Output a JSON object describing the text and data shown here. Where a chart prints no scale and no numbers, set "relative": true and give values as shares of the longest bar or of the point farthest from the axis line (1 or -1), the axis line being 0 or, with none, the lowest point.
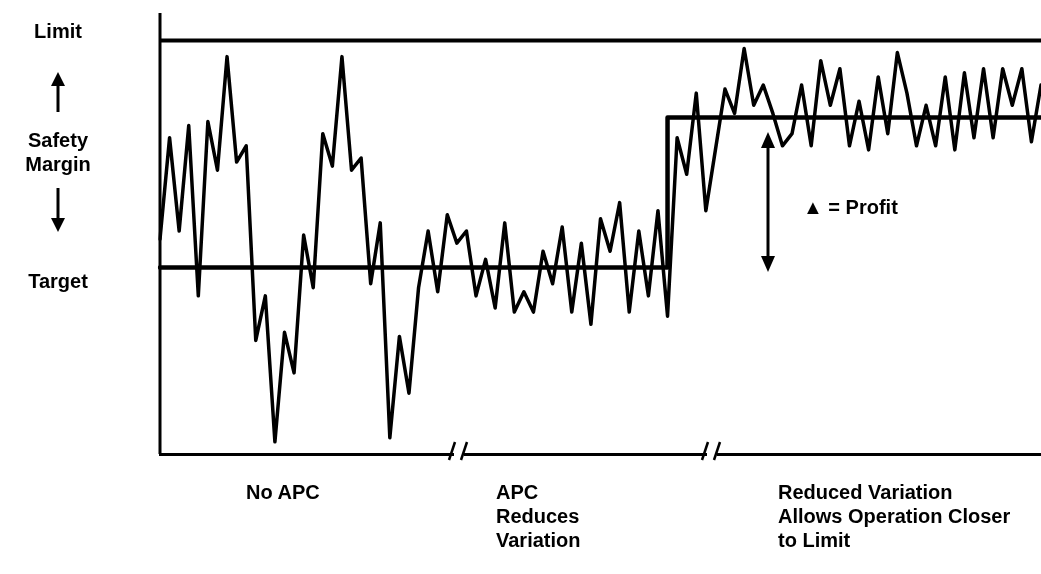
{
  "chart_data": {
    "type": "line",
    "relative": true,
    "categories": [
      null,
      null,
      null,
      null,
      null,
      null,
      null,
      null,
      null,
      null,
      null,
      null,
      null,
      null,
      null,
      null,
      null,
      null,
      null,
      null,
      null,
      null,
      null,
      null,
      null,
      null,
      null,
      null,
      null,
      null,
      null,
      null,
      null,
      null,
      null,
      null,
      null,
      null,
      null,
      null,
      null,
      null,
      null,
      null,
      null,
      null,
      null,
      null,
      null,
      null,
      null,
      null,
      null,
      null,
      null,
      null,
      null,
      null,
      null,
      null,
      null,
      null,
      null,
      null,
      null,
      null,
      null,
      null,
      null,
      null,
      null,
      null,
      null,
      null,
      null,
      null,
      null,
      null,
      null,
      null,
      null,
      null,
      null,
      null,
      null,
      null,
      null,
      null,
      null,
      null,
      null,
      null,
      null
    ],
    "series": [
      {
        "color": "#000000",
        "values": [
          0.53,
          0.78,
          0.55,
          0.81,
          0.39,
          0.82,
          0.7,
          0.98,
          0.72,
          0.76,
          0.28,
          0.39,
          0.03,
          0.3,
          0.2,
          0.54,
          0.41,
          0.79,
          0.71,
          0.98,
          0.7,
          0.73,
          0.42,
          0.57,
          0.04,
          0.29,
          0.15,
          0.41,
          0.55,
          0.4,
          0.59,
          0.52,
          0.55,
          0.39,
          0.48,
          0.36,
          0.57,
          0.35,
          0.4,
          0.35,
          0.5,
          0.42,
          0.56,
          0.35,
          0.52,
          0.32,
          0.58,
          0.5,
          0.62,
          0.35,
          0.55,
          0.39,
          0.6,
          0.34,
          0.78,
          0.69,
          0.89,
          0.6,
          0.75,
          0.9,
          0.84,
          1,
          0.86,
          0.91,
          0.84,
          0.76,
          0.79,
          0.91,
          0.76,
          0.97,
          0.86,
          0.95,
          0.76,
          0.87,
          0.75,
          0.93,
          0.79,
          0.99,
          0.89,
          0.76,
          0.86,
          0.76,
          0.93,
          0.75,
          0.94,
          0.78,
          0.95,
          0.78,
          0.95,
          0.86,
          0.95,
          0.77,
          0.91
        ]
      },
      {
        "type": "step",
        "color": "#000000",
        "values": [
          0.46,
          0.46,
          0.46,
          0.46,
          0.46,
          0.46,
          0.46,
          0.46,
          0.46,
          0.46,
          0.46,
          0.46,
          0.46,
          0.46,
          0.46,
          0.46,
          0.46,
          0.46,
          0.46,
          0.46,
          0.46,
          0.46,
          0.46,
          0.46,
          0.46,
          0.46,
          0.46,
          0.46,
          0.46,
          0.46,
          0.46,
          0.46,
          0.46,
          0.46,
          0.46,
          0.46,
          0.46,
          0.46,
          0.46,
          0.46,
          0.46,
          0.46,
          0.46,
          0.46,
          0.46,
          0.46,
          0.46,
          0.46,
          0.46,
          0.46,
          0.46,
          0.46,
          0.46,
          0.83,
          0.83,
          0.83,
          0.83,
          0.83,
          0.83,
          0.83,
          0.83,
          0.83,
          0.83,
          0.83,
          0.83,
          0.83,
          0.83,
          0.83,
          0.83,
          0.83,
          0.83,
          0.83,
          0.83,
          0.83,
          0.83,
          0.83,
          0.83,
          0.83,
          0.83,
          0.83,
          0.83,
          0.83,
          0.83,
          0.83,
          0.83,
          0.83,
          0.83,
          0.83,
          0.83,
          0.83,
          0.83,
          0.83,
          0.83
        ]
      }
    ],
    "ref_lines": [
      {
        "axis": "y",
        "value": 1.02,
        "label": "Limit"
      }
    ],
    "annotations": [
      "Safety Margin",
      "Target",
      "▲ = Profit",
      "No APC",
      "APC Reduces Variation",
      "Reduced Variation Allows Operation Closer to Limit"
    ],
    "legend": false,
    "grid": false,
    "marker": "none",
    "line_style": "solid"
  }
}
